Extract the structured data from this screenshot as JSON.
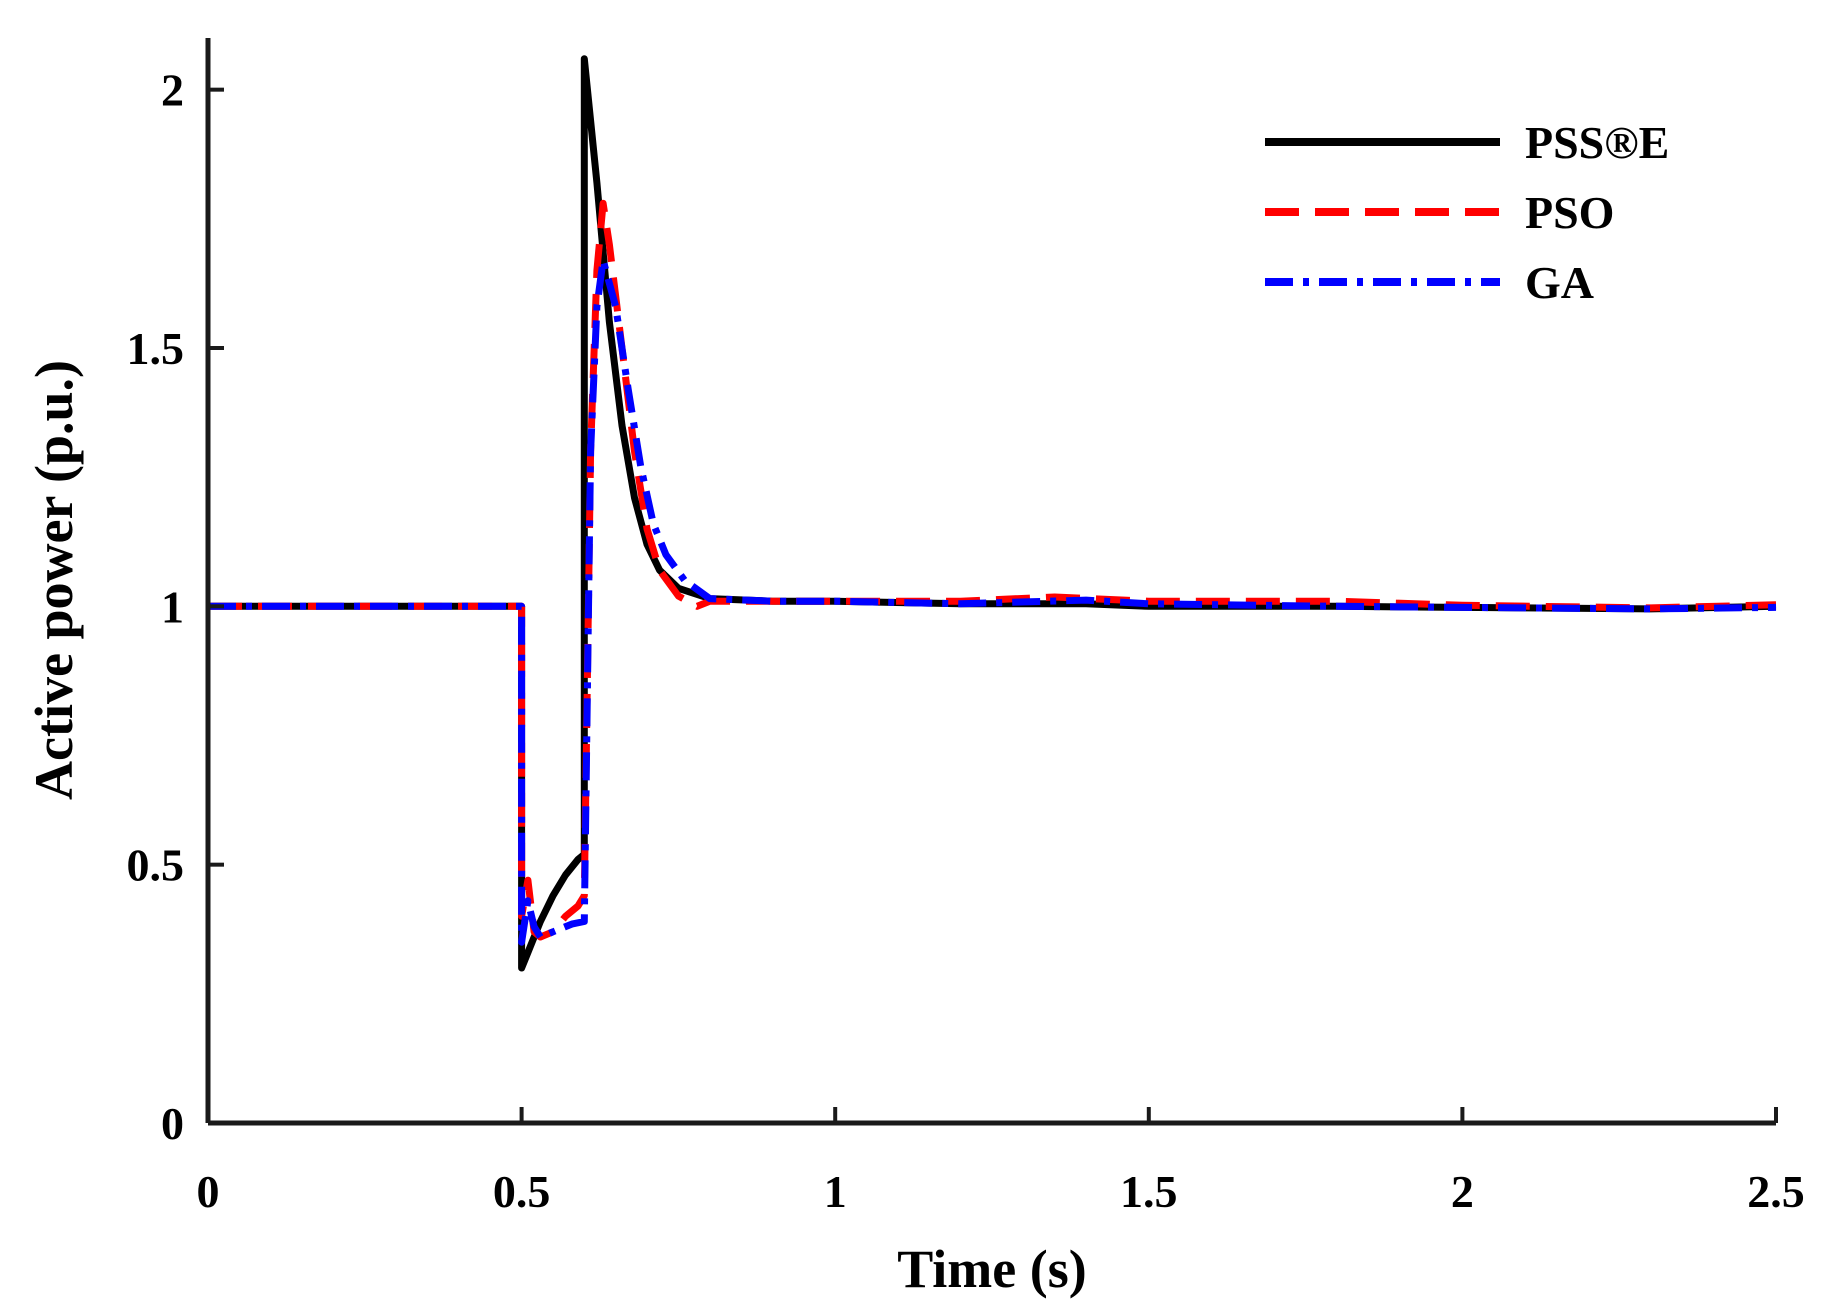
{
  "chart_data": {
    "type": "line",
    "title": "",
    "xlabel": "Time (s)",
    "ylabel": "Active power (p.u.)",
    "xlim": [
      0,
      2.5
    ],
    "ylim": [
      0,
      2.1
    ],
    "xticks": [
      0,
      0.5,
      1,
      1.5,
      2,
      2.5
    ],
    "xtick_labels": [
      "0",
      "0.5",
      "1",
      "1.5",
      "2",
      "2.5"
    ],
    "yticks": [
      0,
      0.5,
      1,
      1.5,
      2
    ],
    "ytick_labels": [
      "0",
      "0.5",
      "1",
      "1.5",
      "2"
    ],
    "grid": false,
    "legend_position": "top-right",
    "series": [
      {
        "name": "PSS®E",
        "color": "#000000",
        "style": "solid",
        "points": [
          [
            0,
            1
          ],
          [
            0.5,
            1
          ],
          [
            0.5,
            0.3
          ],
          [
            0.51,
            0.33
          ],
          [
            0.53,
            0.39
          ],
          [
            0.55,
            0.44
          ],
          [
            0.57,
            0.48
          ],
          [
            0.59,
            0.51
          ],
          [
            0.6,
            0.52
          ],
          [
            0.6,
            2.06
          ],
          [
            0.62,
            1.82
          ],
          [
            0.64,
            1.55
          ],
          [
            0.66,
            1.35
          ],
          [
            0.68,
            1.21
          ],
          [
            0.7,
            1.12
          ],
          [
            0.72,
            1.07
          ],
          [
            0.75,
            1.035
          ],
          [
            0.8,
            1.015
          ],
          [
            0.9,
            1.01
          ],
          [
            1.0,
            1.01
          ],
          [
            1.2,
            1.005
          ],
          [
            1.4,
            1.005
          ],
          [
            1.5,
            1.0
          ],
          [
            1.8,
            1.0
          ],
          [
            2.0,
            0.998
          ],
          [
            2.3,
            0.995
          ],
          [
            2.5,
            1.0
          ]
        ]
      },
      {
        "name": "PSO",
        "color": "#ff0000",
        "style": "dashed",
        "points": [
          [
            0,
            1
          ],
          [
            0.5,
            1
          ],
          [
            0.5,
            0.4
          ],
          [
            0.51,
            0.47
          ],
          [
            0.52,
            0.37
          ],
          [
            0.53,
            0.36
          ],
          [
            0.55,
            0.37
          ],
          [
            0.57,
            0.4
          ],
          [
            0.59,
            0.42
          ],
          [
            0.6,
            0.44
          ],
          [
            0.61,
            1.3
          ],
          [
            0.62,
            1.65
          ],
          [
            0.63,
            1.78
          ],
          [
            0.64,
            1.7
          ],
          [
            0.66,
            1.5
          ],
          [
            0.68,
            1.3
          ],
          [
            0.7,
            1.15
          ],
          [
            0.72,
            1.07
          ],
          [
            0.75,
            1.02
          ],
          [
            0.78,
            1.0
          ],
          [
            0.8,
            1.01
          ],
          [
            1.0,
            1.01
          ],
          [
            1.2,
            1.01
          ],
          [
            1.35,
            1.018
          ],
          [
            1.5,
            1.01
          ],
          [
            1.8,
            1.01
          ],
          [
            2.0,
            1.002
          ],
          [
            2.3,
            0.997
          ],
          [
            2.5,
            1.003
          ]
        ]
      },
      {
        "name": "GA",
        "color": "#0000ff",
        "style": "dashdot",
        "points": [
          [
            0,
            1
          ],
          [
            0.5,
            1
          ],
          [
            0.5,
            0.35
          ],
          [
            0.51,
            0.43
          ],
          [
            0.52,
            0.38
          ],
          [
            0.53,
            0.36
          ],
          [
            0.55,
            0.37
          ],
          [
            0.58,
            0.385
          ],
          [
            0.6,
            0.39
          ],
          [
            0.61,
            1.3
          ],
          [
            0.62,
            1.58
          ],
          [
            0.63,
            1.67
          ],
          [
            0.65,
            1.58
          ],
          [
            0.67,
            1.42
          ],
          [
            0.69,
            1.27
          ],
          [
            0.71,
            1.16
          ],
          [
            0.73,
            1.1
          ],
          [
            0.76,
            1.05
          ],
          [
            0.8,
            1.015
          ],
          [
            0.9,
            1.01
          ],
          [
            1.0,
            1.01
          ],
          [
            1.2,
            1.005
          ],
          [
            1.4,
            1.012
          ],
          [
            1.5,
            1.005
          ],
          [
            1.8,
            1.0
          ],
          [
            2.0,
            0.998
          ],
          [
            2.3,
            0.995
          ],
          [
            2.5,
            0.998
          ]
        ]
      }
    ]
  }
}
